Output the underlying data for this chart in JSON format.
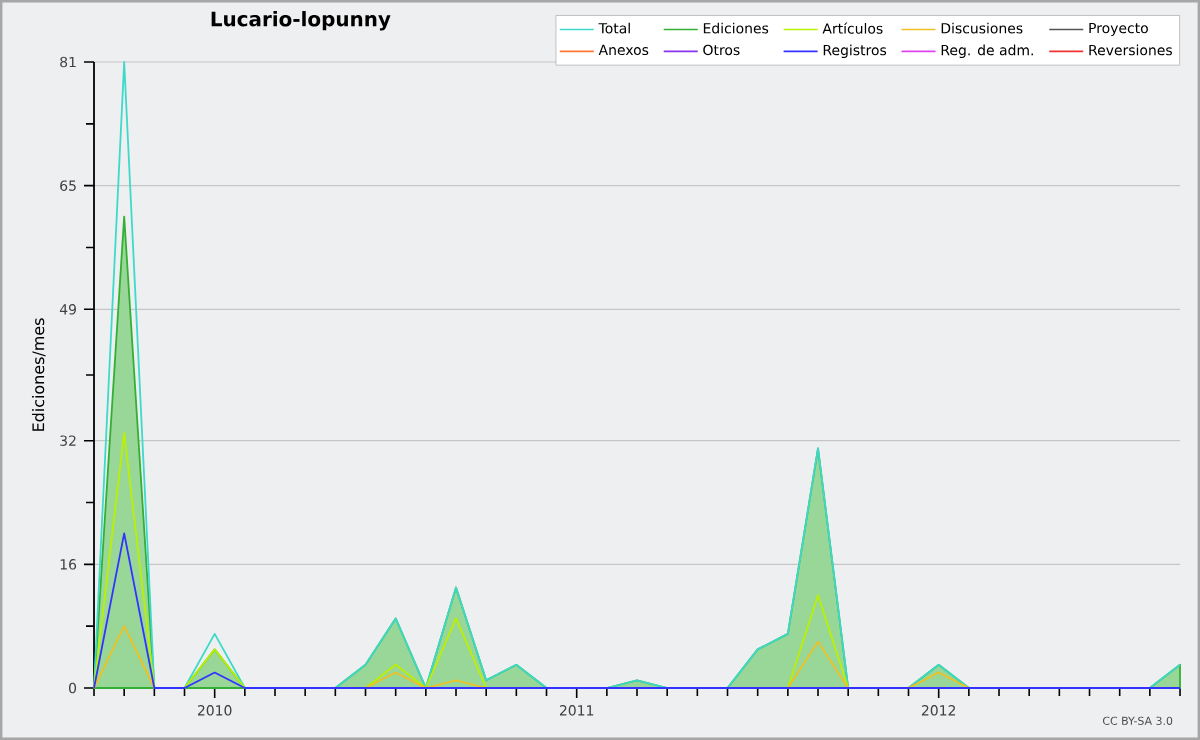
{
  "chart_data": {
    "type": "line",
    "title": "Lucario-lopunny",
    "ylabel": "Ediciones/mes",
    "x": [
      "2009-09",
      "2009-10",
      "2009-11",
      "2009-12",
      "2010-01",
      "2010-02",
      "2010-03",
      "2010-04",
      "2010-05",
      "2010-06",
      "2010-07",
      "2010-08",
      "2010-09",
      "2010-10",
      "2010-11",
      "2010-12",
      "2011-01",
      "2011-02",
      "2011-03",
      "2011-04",
      "2011-05",
      "2011-06",
      "2011-07",
      "2011-08",
      "2011-09",
      "2011-10",
      "2011-11",
      "2011-12",
      "2012-01",
      "2012-02",
      "2012-03",
      "2012-04",
      "2012-05",
      "2012-06",
      "2012-07",
      "2012-08",
      "2012-09"
    ],
    "series": [
      {
        "name": "Total",
        "color": "#3fd9c9",
        "values": [
          0,
          81,
          0,
          0,
          7,
          0,
          0,
          0,
          0,
          3,
          9,
          0,
          13,
          1,
          3,
          0,
          0,
          0,
          1,
          0,
          0,
          0,
          5,
          7,
          31,
          0,
          0,
          0,
          3,
          0,
          0,
          0,
          0,
          0,
          0,
          0,
          3
        ]
      },
      {
        "name": "Ediciones",
        "type": "area",
        "color": "#33b033",
        "values": [
          0,
          61,
          0,
          0,
          5,
          0,
          0,
          0,
          0,
          3,
          9,
          0,
          13,
          1,
          3,
          0,
          0,
          0,
          1,
          0,
          0,
          0,
          5,
          7,
          31,
          0,
          0,
          0,
          3,
          0,
          0,
          0,
          0,
          0,
          0,
          0,
          3
        ]
      },
      {
        "name": "Artículos",
        "color": "#bbf000",
        "values": [
          0,
          33,
          0,
          0,
          5,
          0,
          null,
          null,
          null,
          0,
          3,
          0,
          9,
          0,
          null,
          null,
          null,
          null,
          null,
          null,
          null,
          null,
          null,
          0,
          12,
          0,
          null,
          null,
          null,
          null,
          null,
          null,
          null,
          null,
          null,
          null,
          null
        ]
      },
      {
        "name": "Discusiones",
        "color": "#f0c020",
        "values": [
          0,
          8,
          0,
          null,
          null,
          null,
          null,
          null,
          null,
          0,
          2,
          0,
          1,
          0,
          null,
          null,
          null,
          null,
          null,
          null,
          null,
          null,
          null,
          0,
          6,
          0,
          null,
          0,
          2,
          0,
          null,
          null,
          null,
          null,
          null,
          null,
          null
        ]
      },
      {
        "name": "Proyecto",
        "color": "#555555",
        "values": [
          null,
          null,
          null,
          null,
          null,
          null,
          null,
          null,
          null,
          null,
          null,
          null,
          null,
          null,
          null,
          null,
          null,
          null,
          null,
          null,
          null,
          null,
          null,
          null,
          null,
          null,
          null,
          null,
          null,
          null,
          null,
          null,
          null,
          null,
          null,
          null,
          null
        ]
      },
      {
        "name": "Anexos",
        "color": "#ff7733",
        "values": [
          null,
          null,
          null,
          null,
          null,
          null,
          null,
          null,
          null,
          null,
          null,
          null,
          null,
          null,
          null,
          null,
          null,
          null,
          null,
          null,
          null,
          null,
          null,
          null,
          null,
          null,
          null,
          null,
          null,
          null,
          null,
          null,
          null,
          null,
          null,
          null,
          null
        ]
      },
      {
        "name": "Otros",
        "color": "#8833ee",
        "values": [
          null,
          null,
          null,
          null,
          null,
          null,
          null,
          null,
          null,
          null,
          null,
          null,
          null,
          null,
          null,
          null,
          null,
          null,
          null,
          null,
          null,
          null,
          null,
          null,
          null,
          null,
          null,
          null,
          null,
          null,
          null,
          null,
          null,
          null,
          null,
          null,
          null
        ]
      },
      {
        "name": "Registros",
        "color": "#3333ff",
        "values": [
          0,
          20,
          0,
          0,
          2,
          0,
          0,
          0,
          0,
          0,
          0,
          0,
          0,
          0,
          0,
          0,
          0,
          0,
          0,
          0,
          0,
          0,
          0,
          0,
          0,
          0,
          0,
          0,
          0,
          0,
          0,
          0,
          0,
          0,
          0,
          0,
          0
        ]
      },
      {
        "name": "Reg. de adm.",
        "color": "#dd44ee",
        "values": [
          null,
          null,
          null,
          null,
          null,
          null,
          null,
          null,
          null,
          null,
          null,
          null,
          null,
          null,
          null,
          null,
          null,
          null,
          null,
          null,
          null,
          null,
          null,
          null,
          null,
          null,
          null,
          null,
          null,
          null,
          null,
          null,
          null,
          null,
          null,
          null,
          null
        ]
      },
      {
        "name": "Reversiones",
        "color": "#ee3333",
        "values": [
          null,
          null,
          null,
          null,
          null,
          null,
          null,
          null,
          null,
          null,
          null,
          null,
          null,
          null,
          null,
          null,
          null,
          null,
          null,
          null,
          null,
          null,
          null,
          null,
          null,
          null,
          null,
          null,
          null,
          null,
          null,
          null,
          null,
          null,
          null,
          null,
          null
        ]
      }
    ],
    "xlim": [
      "2009-09",
      "2012-09"
    ],
    "xticks": [
      {
        "value": "2009-09",
        "label": null
      },
      {
        "value": "2009-10",
        "label": null
      },
      {
        "value": "2009-11",
        "label": null
      },
      {
        "value": "2009-12",
        "label": null
      },
      {
        "value": "2010-01",
        "label": "2010"
      },
      {
        "value": "2010-02",
        "label": null
      },
      {
        "value": "2010-03",
        "label": null
      },
      {
        "value": "2010-04",
        "label": null
      },
      {
        "value": "2010-05",
        "label": null
      },
      {
        "value": "2010-06",
        "label": null
      },
      {
        "value": "2010-07",
        "label": null
      },
      {
        "value": "2010-08",
        "label": null
      },
      {
        "value": "2010-09",
        "label": null
      },
      {
        "value": "2010-10",
        "label": null
      },
      {
        "value": "2010-11",
        "label": null
      },
      {
        "value": "2010-12",
        "label": null
      },
      {
        "value": "2011-01",
        "label": "2011"
      },
      {
        "value": "2011-02",
        "label": null
      },
      {
        "value": "2011-03",
        "label": null
      },
      {
        "value": "2011-04",
        "label": null
      },
      {
        "value": "2011-05",
        "label": null
      },
      {
        "value": "2011-06",
        "label": null
      },
      {
        "value": "2011-07",
        "label": null
      },
      {
        "value": "2011-08",
        "label": null
      },
      {
        "value": "2011-09",
        "label": null
      },
      {
        "value": "2011-10",
        "label": null
      },
      {
        "value": "2011-11",
        "label": null
      },
      {
        "value": "2011-12",
        "label": null
      },
      {
        "value": "2012-01",
        "label": "2012"
      },
      {
        "value": "2012-02",
        "label": null
      },
      {
        "value": "2012-03",
        "label": null
      },
      {
        "value": "2012-04",
        "label": null
      },
      {
        "value": "2012-05",
        "label": null
      },
      {
        "value": "2012-06",
        "label": null
      },
      {
        "value": "2012-07",
        "label": null
      },
      {
        "value": "2012-08",
        "label": null
      },
      {
        "value": "2012-09",
        "label": null
      }
    ],
    "ylim": [
      0,
      81
    ],
    "yticks": [
      0,
      {
        "value": 8,
        "label": null
      },
      16,
      {
        "value": 24,
        "label": null
      },
      32,
      {
        "value": 40.5,
        "label": null
      },
      49,
      {
        "value": 57,
        "label": null
      },
      65,
      {
        "value": 73,
        "label": null
      },
      81
    ],
    "grid": "y",
    "legend": "top right",
    "annotations": [
      "CC BY-SA 3.0"
    ]
  }
}
